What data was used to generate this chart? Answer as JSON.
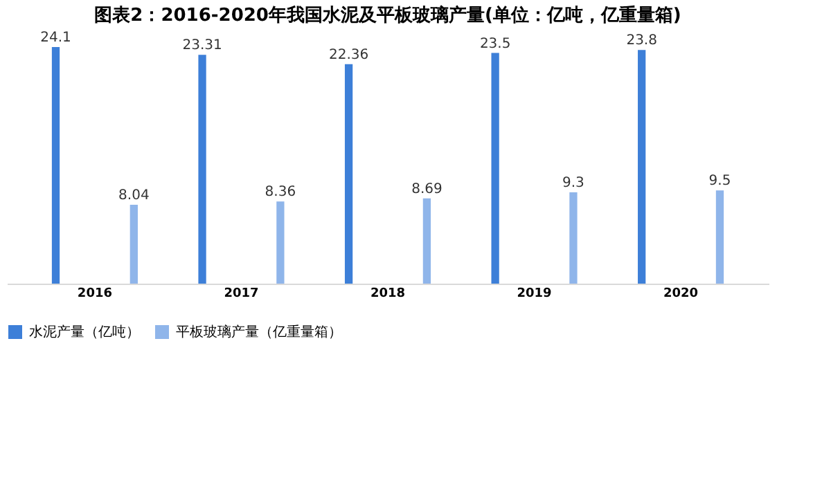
{
  "chart_data": {
    "type": "bar",
    "title": "图表2：2016-2020年我国水泥及平板玻璃产量(单位：亿吨，亿重量箱)",
    "categories": [
      "2016",
      "2017",
      "2018",
      "2019",
      "2020"
    ],
    "series": [
      {
        "name": "水泥产量（亿吨）",
        "color": "#3d7fd8",
        "values": [
          24.1,
          23.31,
          22.36,
          23.5,
          23.8
        ]
      },
      {
        "name": "平板玻璃产量（亿重量箱）",
        "color": "#8fb5ea",
        "values": [
          8.04,
          8.36,
          8.69,
          9.3,
          9.5
        ]
      }
    ],
    "data_labels": true,
    "legend": "bottom",
    "grid": false,
    "tick_labels": "x"
  }
}
